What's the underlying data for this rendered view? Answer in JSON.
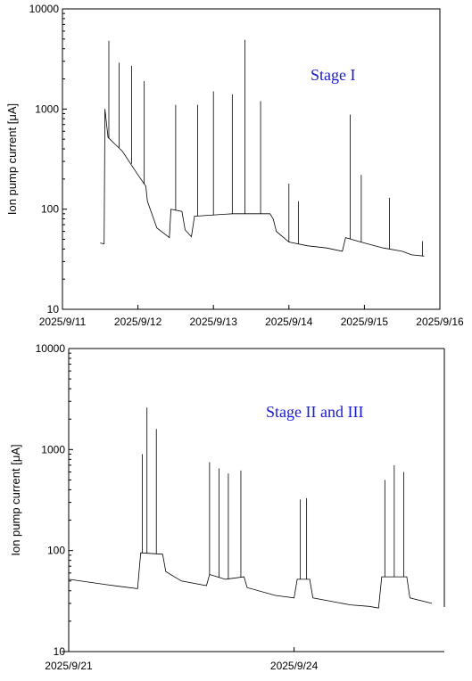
{
  "chart_data": [
    {
      "type": "line",
      "ylabel": "Ion pump current [μA]",
      "annotation": "Stage I",
      "yscale": "log",
      "ylim": [
        10,
        10000
      ],
      "yticks": [
        "10",
        "100",
        "1000",
        "10000"
      ],
      "xlim": [
        "2025/9/11",
        "2025/9/16"
      ],
      "xticks": [
        "2025/9/11",
        "2025/9/12",
        "2025/9/13",
        "2025/9/14",
        "2025/9/15",
        "2025/9/16"
      ],
      "series_color": "#000000",
      "baseline": [
        [
          "2025/9/11 12:00",
          46
        ],
        [
          "2025/9/11 13:15",
          45
        ],
        [
          "2025/9/11 13:30",
          1000
        ],
        [
          "2025/9/11 14:30",
          520
        ],
        [
          "2025/9/11 19:00",
          380
        ],
        [
          "2025/9/12 00:00",
          220
        ],
        [
          "2025/9/12 02:30",
          170
        ],
        [
          "2025/9/12 03:00",
          120
        ],
        [
          "2025/9/12 06:00",
          65
        ],
        [
          "2025/9/12 09:00",
          55
        ],
        [
          "2025/9/12 10:00",
          52
        ],
        [
          "2025/9/12 10:30",
          100
        ],
        [
          "2025/9/12 14:00",
          95
        ],
        [
          "2025/9/12 15:00",
          62
        ],
        [
          "2025/9/12 17:00",
          53
        ],
        [
          "2025/9/12 18:00",
          85
        ],
        [
          "2025/9/13 06:00",
          90
        ],
        [
          "2025/9/13 18:00",
          90
        ],
        [
          "2025/9/13 19:00",
          80
        ],
        [
          "2025/9/13 20:00",
          60
        ],
        [
          "2025/9/14 00:00",
          47
        ],
        [
          "2025/9/14 06:00",
          43
        ],
        [
          "2025/9/14 12:00",
          41
        ],
        [
          "2025/9/14 17:00",
          38
        ],
        [
          "2025/9/14 18:00",
          52
        ],
        [
          "2025/9/15 00:00",
          46
        ],
        [
          "2025/9/15 06:00",
          41
        ],
        [
          "2025/9/15 12:00",
          38
        ],
        [
          "2025/9/15 15:00",
          35
        ],
        [
          "2025/9/15 19:00",
          34
        ]
      ],
      "peaks": [
        [
          "2025/9/11 14:45",
          4800
        ],
        [
          "2025/9/11 18:00",
          2900
        ],
        [
          "2025/9/11 22:00",
          2700
        ],
        [
          "2025/9/12 02:00",
          1900
        ],
        [
          "2025/9/12 12:00",
          1100
        ],
        [
          "2025/9/12 19:00",
          1100
        ],
        [
          "2025/9/13 00:00",
          1500
        ],
        [
          "2025/9/13 06:00",
          1400
        ],
        [
          "2025/9/13 10:00",
          4900
        ],
        [
          "2025/9/13 15:00",
          1200
        ],
        [
          "2025/9/14 00:00",
          180
        ],
        [
          "2025/9/14 03:00",
          120
        ],
        [
          "2025/9/14 19:30",
          880
        ],
        [
          "2025/9/14 23:00",
          220
        ],
        [
          "2025/9/15 08:00",
          130
        ],
        [
          "2025/9/15 18:30",
          48
        ]
      ]
    },
    {
      "type": "line",
      "ylabel": "Ion pump current [μA]",
      "annotation": "Stage II and III",
      "yscale": "log",
      "ylim": [
        10,
        10000
      ],
      "yticks": [
        "10",
        "100",
        "1000",
        "10000"
      ],
      "xlim": [
        "2025/9/21",
        "2025/9/26"
      ],
      "xticks": [
        "2025/9/21",
        "2025/9/24"
      ],
      "series_color": "#000000",
      "baseline": [
        [
          "2025/9/21 00:00",
          52
        ],
        [
          "2025/9/21 12:00",
          46
        ],
        [
          "2025/9/21 22:00",
          42
        ],
        [
          "2025/9/21 23:00",
          95
        ],
        [
          "2025/9/22 06:00",
          92
        ],
        [
          "2025/9/22 07:00",
          62
        ],
        [
          "2025/9/22 12:00",
          50
        ],
        [
          "2025/9/22 20:00",
          45
        ],
        [
          "2025/9/22 21:00",
          58
        ],
        [
          "2025/9/23 02:00",
          52
        ],
        [
          "2025/9/23 08:00",
          55
        ],
        [
          "2025/9/23 09:00",
          43
        ],
        [
          "2025/9/23 18:00",
          36
        ],
        [
          "2025/9/24 00:00",
          34
        ],
        [
          "2025/9/24 01:00",
          52
        ],
        [
          "2025/9/24 05:00",
          52
        ],
        [
          "2025/9/24 06:00",
          34
        ],
        [
          "2025/9/24 18:00",
          29
        ],
        [
          "2025/9/25 00:00",
          28
        ],
        [
          "2025/9/25 03:00",
          27
        ],
        [
          "2025/9/25 04:00",
          55
        ],
        [
          "2025/9/25 12:00",
          55
        ],
        [
          "2025/9/25 13:00",
          34
        ],
        [
          "2025/9/25 20:00",
          30
        ]
      ],
      "peaks": [
        [
          "2025/9/21 23:30",
          900
        ],
        [
          "2025/9/22 01:00",
          2600
        ],
        [
          "2025/9/22 04:00",
          1600
        ],
        [
          "2025/9/22 21:00",
          750
        ],
        [
          "2025/9/23 00:00",
          650
        ],
        [
          "2025/9/23 03:00",
          580
        ],
        [
          "2025/9/23 07:00",
          620
        ],
        [
          "2025/9/24 02:00",
          320
        ],
        [
          "2025/9/24 04:00",
          330
        ],
        [
          "2025/9/25 05:00",
          500
        ],
        [
          "2025/9/25 08:00",
          700
        ],
        [
          "2025/9/25 11:00",
          600
        ]
      ]
    }
  ]
}
